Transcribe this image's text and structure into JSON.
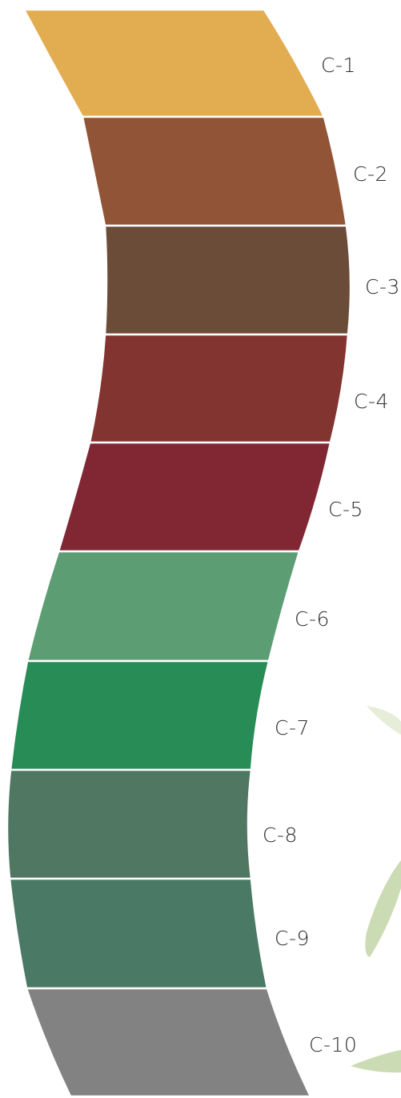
{
  "swatches": [
    {
      "label": "C-1",
      "color": "#E2AC50"
    },
    {
      "label": "C-2",
      "color": "#925436"
    },
    {
      "label": "C-3",
      "color": "#6B4C38"
    },
    {
      "label": "C-4",
      "color": "#823430"
    },
    {
      "label": "C-5",
      "color": "#812734"
    },
    {
      "label": "C-6",
      "color": "#5C9D74"
    },
    {
      "label": "C-7",
      "color": "#288C57"
    },
    {
      "label": "C-8",
      "color": "#4F7761"
    },
    {
      "label": "C-9",
      "color": "#4A7A66"
    },
    {
      "label": "C-10",
      "color": "#828282"
    }
  ]
}
